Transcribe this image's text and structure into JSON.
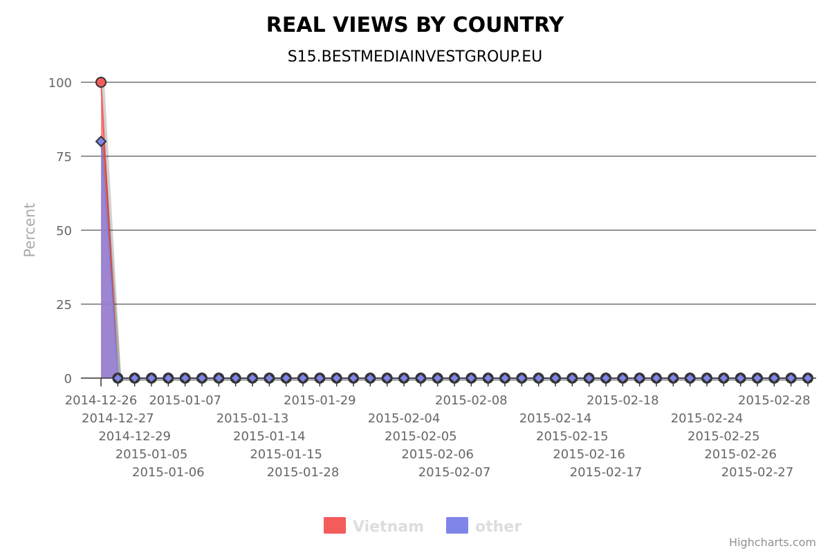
{
  "chart_data": {
    "type": "area",
    "title": "REAL VIEWS BY COUNTRY",
    "subtitle": "S15.BESTMEDIAINVESTGROUP.EU",
    "ylabel": "Percent",
    "xlabel": "",
    "ylim": [
      0,
      100
    ],
    "yticks": [
      0,
      25,
      50,
      75,
      100
    ],
    "grid": true,
    "legend_position": "bottom-center",
    "categories": [
      "2014-12-26",
      "2014-12-27",
      "2014-12-29",
      "2015-01-05",
      "2015-01-06",
      "2015-01-07",
      "",
      "",
      "",
      "2015-01-13",
      "2015-01-14",
      "2015-01-15",
      "2015-01-28",
      "2015-01-29",
      "",
      "",
      "",
      "",
      "2015-02-04",
      "2015-02-05",
      "2015-02-06",
      "2015-02-07",
      "2015-02-08",
      "",
      "",
      "",
      "",
      "2015-02-14",
      "2015-02-15",
      "2015-02-16",
      "2015-02-17",
      "2015-02-18",
      "",
      "",
      "",
      "",
      "2015-02-24",
      "2015-02-25",
      "2015-02-26",
      "2015-02-27",
      "2015-02-28",
      "",
      ""
    ],
    "series": [
      {
        "name": "Vietnam",
        "color": "#f45b5b",
        "marker": "circle",
        "values": [
          100,
          0,
          0,
          0,
          0,
          0,
          0,
          0,
          0,
          0,
          0,
          0,
          0,
          0,
          0,
          0,
          0,
          0,
          0,
          0,
          0,
          0,
          0,
          0,
          0,
          0,
          0,
          0,
          0,
          0,
          0,
          0,
          0,
          0,
          0,
          0,
          0,
          0,
          0,
          0,
          0,
          0,
          0
        ]
      },
      {
        "name": "other",
        "color": "#8085e9",
        "marker": "diamond",
        "values": [
          80,
          0,
          0,
          0,
          0,
          0,
          0,
          0,
          0,
          0,
          0,
          0,
          0,
          0,
          0,
          0,
          0,
          0,
          0,
          0,
          0,
          0,
          0,
          0,
          0,
          0,
          0,
          0,
          0,
          0,
          0,
          0,
          0,
          0,
          0,
          0,
          0,
          0,
          0,
          0,
          0,
          0,
          0
        ]
      }
    ],
    "credits": "Highcharts.com"
  }
}
